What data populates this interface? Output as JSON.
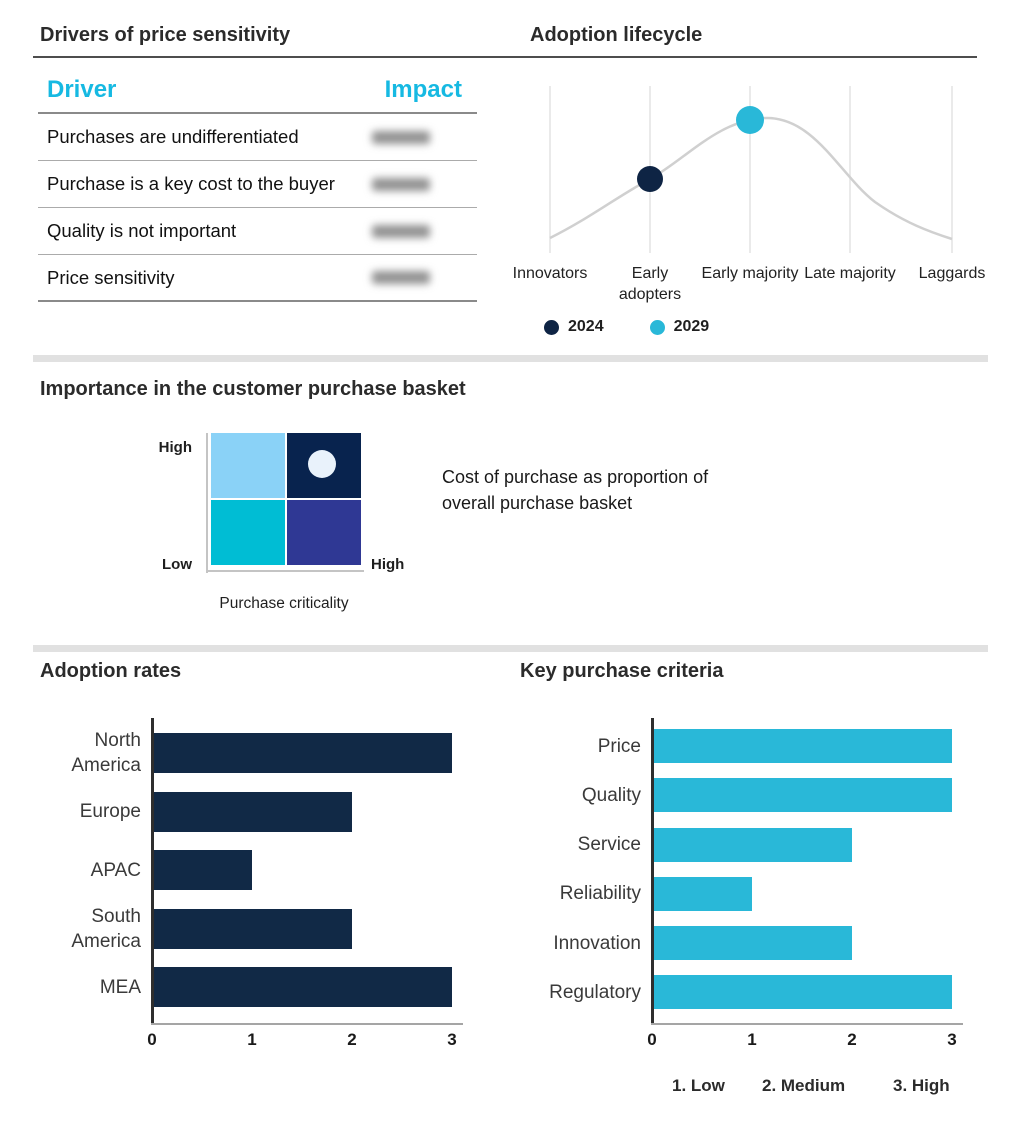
{
  "colors": {
    "navy_point": "#0e2444",
    "navy_bar": "#112946",
    "cyan": "#29b8d8",
    "table_header_cyan": "#16b9e2",
    "curve_gray": "#d0d0d0",
    "divider_gray": "#e1e1e1"
  },
  "chart_data": [
    {
      "type": "table",
      "title": "Drivers of price sensitivity",
      "columns": [
        "Driver",
        "Impact"
      ],
      "header_color": "#16b9e2",
      "rows": [
        {
          "driver": "Purchases are undifferentiated",
          "impact": "",
          "impact_redacted": true
        },
        {
          "driver": "Purchase is a key cost to the buyer",
          "impact": "",
          "impact_redacted": true
        },
        {
          "driver": "Quality is not important",
          "impact": "",
          "impact_redacted": true
        },
        {
          "driver": "Price sensitivity",
          "impact": "",
          "impact_redacted": true
        }
      ]
    },
    {
      "type": "line",
      "subtype": "bell-curve",
      "title": "Adoption lifecycle",
      "x_categories": [
        "Innovators",
        "Early adopters",
        "Early majority",
        "Late majority",
        "Laggards"
      ],
      "points": [
        {
          "label": "2024",
          "x": "Early adopters",
          "color": "#0e2444"
        },
        {
          "label": "2029",
          "x": "Early majority",
          "color": "#29b8d8"
        }
      ],
      "curve_color": "#d0d0d0",
      "legend_position": "bottom-left"
    },
    {
      "type": "heatmap",
      "subtype": "2x2-matrix",
      "title": "Importance in the customer purchase basket",
      "y_axis_top": "High",
      "y_axis_bottom": "Low",
      "x_axis_right": "High",
      "x_axis_label": "Purchase criticality",
      "annotation": [
        "Cost of purchase as proportion of",
        "overall purchase basket"
      ],
      "quadrant_colors": {
        "top_left": "#8ad2f7",
        "top_right": "#08234e",
        "bottom_left": "#00bdd4",
        "bottom_right": "#2f3894"
      },
      "marker": {
        "quadrant": "top_right",
        "color": "#e9f2fb"
      }
    },
    {
      "type": "bar",
      "orientation": "horizontal",
      "title": "Adoption rates",
      "categories": [
        "North America",
        "Europe",
        "APAC",
        "South America",
        "MEA"
      ],
      "values": [
        3,
        2,
        1,
        2,
        3
      ],
      "xlim": [
        0,
        3
      ],
      "x_ticks": [
        "0",
        "1",
        "2",
        "3"
      ],
      "bar_color": "#112946",
      "grid": false
    },
    {
      "type": "bar",
      "orientation": "horizontal",
      "title": "Key purchase criteria",
      "categories": [
        "Price",
        "Quality",
        "Service",
        "Reliability",
        "Innovation",
        "Regulatory"
      ],
      "values": [
        3,
        3,
        2,
        1,
        2,
        3
      ],
      "xlim": [
        0,
        3
      ],
      "x_ticks": [
        "0",
        "1",
        "2",
        "3"
      ],
      "bar_color": "#29b8d8",
      "scale_labels": [
        "1. Low",
        "2. Medium",
        "3. High"
      ],
      "grid": false
    }
  ]
}
